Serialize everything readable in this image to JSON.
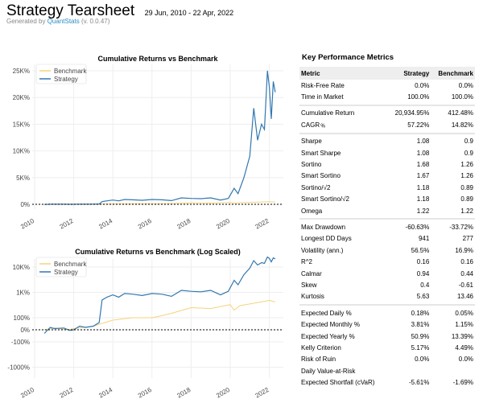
{
  "header": {
    "title": "Strategy Tearsheet",
    "date_range": "29 Jun, 2010 - 22 Apr, 2022",
    "generated_prefix": "Generated by ",
    "generator_link": "QuantStats",
    "version": " (v. 0.0.47)"
  },
  "colors": {
    "strategy": "#3177b0",
    "benchmark": "#f5d37a",
    "grid": "#eeeeee"
  },
  "chart_data": [
    {
      "type": "line",
      "title": "Cumulative Returns vs Benchmark",
      "xlabel": "",
      "ylabel": "",
      "xlim": [
        2010,
        2023
      ],
      "ylim": [
        0,
        25000
      ],
      "x_ticks": [
        "2010",
        "2012",
        "2014",
        "2016",
        "2018",
        "2020",
        "2022"
      ],
      "y_ticks": [
        {
          "v": 0,
          "label": "0%"
        },
        {
          "v": 5000,
          "label": "5K%"
        },
        {
          "v": 10000,
          "label": "10K%"
        },
        {
          "v": 15000,
          "label": "15K%"
        },
        {
          "v": 20000,
          "label": "20K%"
        },
        {
          "v": 25000,
          "label": "25K%"
        }
      ],
      "grid": true,
      "legend": "top-left",
      "scale": "linear"
    },
    {
      "type": "line",
      "title": "Cumulative Returns vs Benchmark (Log Scaled)",
      "xlabel": "",
      "ylabel": "",
      "xlim": [
        2010,
        2023
      ],
      "y_ticks": [
        {
          "v": -1000,
          "label": "-1000%"
        },
        {
          "v": -100,
          "label": "-100%"
        },
        {
          "v": 0,
          "label": "0%"
        },
        {
          "v": 100,
          "label": "100%"
        },
        {
          "v": 1000,
          "label": "1K%"
        },
        {
          "v": 10000,
          "label": "10K%"
        }
      ],
      "x_ticks": [
        "2010",
        "2012",
        "2014",
        "2016",
        "2018",
        "2020",
        "2022"
      ],
      "grid": true,
      "legend": "top-left",
      "scale": "symlog"
    }
  ],
  "series": {
    "strategy": {
      "name": "Strategy",
      "x": [
        2010.5,
        2010.8,
        2011.0,
        2011.5,
        2011.8,
        2012.0,
        2012.3,
        2012.6,
        2013.0,
        2013.3,
        2013.45,
        2013.7,
        2014.0,
        2014.3,
        2014.6,
        2015.0,
        2015.5,
        2016.0,
        2016.5,
        2017.0,
        2017.5,
        2018.0,
        2018.5,
        2019.0,
        2019.5,
        2019.9,
        2020.2,
        2020.4,
        2020.7,
        2021.0,
        2021.2,
        2021.4,
        2021.6,
        2021.75,
        2021.9,
        2022.0,
        2022.1,
        2022.2,
        2022.3
      ],
      "y": [
        -30,
        20,
        10,
        15,
        -5,
        0,
        30,
        20,
        30,
        60,
        500,
        650,
        800,
        650,
        900,
        850,
        750,
        900,
        850,
        700,
        1200,
        1100,
        1050,
        1200,
        800,
        1100,
        3000,
        2000,
        5000,
        9000,
        18000,
        12000,
        15000,
        14000,
        25000,
        22000,
        16000,
        23000,
        21000
      ]
    },
    "benchmark": {
      "name": "Benchmark",
      "x": [
        2010.5,
        2011.0,
        2011.7,
        2012.0,
        2013.0,
        2014.0,
        2015.0,
        2016.0,
        2016.5,
        2017.0,
        2018.0,
        2019.0,
        2020.0,
        2020.2,
        2020.5,
        2021.0,
        2022.0,
        2022.3
      ],
      "y": [
        0,
        15,
        0,
        10,
        30,
        80,
        100,
        100,
        120,
        150,
        250,
        230,
        330,
        200,
        300,
        350,
        480,
        420
      ]
    }
  },
  "metrics": {
    "title": "Key Performance Metrics",
    "columns": [
      "Metric",
      "Strategy",
      "Benchmark"
    ],
    "groups": [
      [
        [
          "Risk-Free Rate",
          "0.0%",
          "0.0%"
        ],
        [
          "Time in Market",
          "100.0%",
          "100.0%"
        ]
      ],
      [
        [
          "Cumulative Return",
          "20,934.95%",
          "412.48%"
        ],
        [
          "CAGR﹪",
          "57.22%",
          "14.82%"
        ]
      ],
      [
        [
          "Sharpe",
          "1.08",
          "0.9"
        ],
        [
          "Smart Sharpe",
          "1.08",
          "0.9"
        ],
        [
          "Sortino",
          "1.68",
          "1.26"
        ],
        [
          "Smart Sortino",
          "1.67",
          "1.26"
        ],
        [
          "Sortino/√2",
          "1.18",
          "0.89"
        ],
        [
          "Smart Sortino/√2",
          "1.18",
          "0.89"
        ],
        [
          "Omega",
          "1.22",
          "1.22"
        ]
      ],
      [
        [
          "Max Drawdown",
          "-60.63%",
          "-33.72%"
        ],
        [
          "Longest DD Days",
          "941",
          "277"
        ],
        [
          "Volatility (ann.)",
          "56.5%",
          "16.9%"
        ],
        [
          "R^2",
          "0.16",
          "0.16"
        ],
        [
          "Calmar",
          "0.94",
          "0.44"
        ],
        [
          "Skew",
          "0.4",
          "-0.61"
        ],
        [
          "Kurtosis",
          "5.63",
          "13.46"
        ]
      ],
      [
        [
          "Expected Daily %",
          "0.18%",
          "0.05%"
        ],
        [
          "Expected Monthly %",
          "3.81%",
          "1.15%"
        ],
        [
          "Expected Yearly %",
          "50.9%",
          "13.39%"
        ],
        [
          "Kelly Criterion",
          "5.17%",
          "4.49%"
        ],
        [
          "Risk of Ruin",
          "0.0%",
          "0.0%"
        ],
        [
          "Daily Value-at-Risk",
          "",
          ""
        ],
        [
          "Expected Shortfall (cVaR)",
          "-5.61%",
          "-1.69%"
        ]
      ]
    ]
  }
}
